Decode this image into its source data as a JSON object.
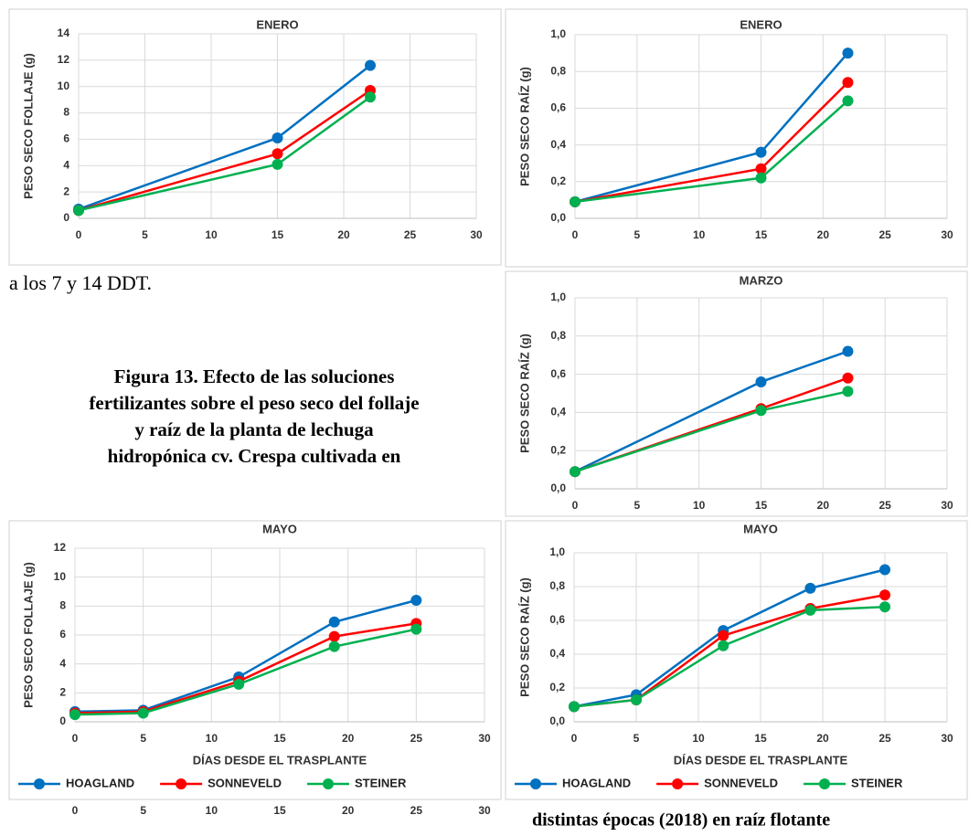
{
  "chart_data": [
    {
      "type": "line",
      "title": "ENERO",
      "y_label": "PESO SECO FOLLAJE (g)",
      "x": [
        0,
        15,
        22
      ],
      "xlim": [
        0,
        30
      ],
      "xticks": [
        0,
        5,
        10,
        15,
        20,
        25,
        30
      ],
      "ylim": [
        0,
        14
      ],
      "yticks": [
        0,
        2,
        4,
        6,
        8,
        10,
        12,
        14
      ],
      "grid": true,
      "series": [
        {
          "color": "#0070C0",
          "values": [
            0.7,
            6.1,
            11.6
          ]
        },
        {
          "color": "#FF0000",
          "values": [
            0.6,
            4.9,
            9.7
          ]
        },
        {
          "color": "#00B050",
          "values": [
            0.6,
            4.1,
            9.2
          ]
        }
      ]
    },
    {
      "type": "line",
      "title": "ENERO",
      "y_label": "PESO SECO RAÍZ (g)",
      "x": [
        0,
        15,
        22
      ],
      "xlim": [
        0,
        30
      ],
      "xticks": [
        0,
        5,
        10,
        15,
        20,
        25,
        30
      ],
      "ylim": [
        0,
        1
      ],
      "yticks": [
        {
          "value": 0,
          "label": "0,0"
        },
        {
          "value": 0.2,
          "label": "0,2"
        },
        {
          "value": 0.4,
          "label": "0,4"
        },
        {
          "value": 0.6,
          "label": "0,6"
        },
        {
          "value": 0.8,
          "label": "0,8"
        },
        {
          "value": 1,
          "label": "1,0"
        }
      ],
      "grid": true,
      "series": [
        {
          "color": "#0070C0",
          "values": [
            0.09,
            0.36,
            0.9
          ]
        },
        {
          "color": "#FF0000",
          "values": [
            0.09,
            0.27,
            0.74
          ]
        },
        {
          "color": "#00B050",
          "values": [
            0.09,
            0.22,
            0.64
          ]
        }
      ]
    },
    {
      "type": "line",
      "title": "MARZO",
      "y_label": "PESO SECO RAÍZ (g)",
      "x": [
        0,
        15,
        22
      ],
      "xlim": [
        0,
        30
      ],
      "xticks": [
        0,
        5,
        10,
        15,
        20,
        25,
        30
      ],
      "ylim": [
        0,
        1
      ],
      "yticks": [
        {
          "value": 0,
          "label": "0,0"
        },
        {
          "value": 0.2,
          "label": "0,2"
        },
        {
          "value": 0.4,
          "label": "0,4"
        },
        {
          "value": 0.6,
          "label": "0,6"
        },
        {
          "value": 0.8,
          "label": "0,8"
        },
        {
          "value": 1,
          "label": "1,0"
        }
      ],
      "grid": true,
      "series": [
        {
          "color": "#0070C0",
          "values": [
            0.09,
            0.56,
            0.72
          ]
        },
        {
          "color": "#FF0000",
          "values": [
            0.09,
            0.42,
            0.58
          ]
        },
        {
          "color": "#00B050",
          "values": [
            0.09,
            0.41,
            0.51
          ]
        }
      ]
    },
    {
      "type": "line",
      "title": "MAYO",
      "y_label": "PESO SECO FOLLAJE  (g)",
      "x_label": "DÍAS DESDE EL TRASPLANTE",
      "x": [
        0,
        5,
        12,
        19,
        25
      ],
      "xlim": [
        0,
        30
      ],
      "xticks": [
        0,
        5,
        10,
        15,
        20,
        25,
        30
      ],
      "ylim": [
        0,
        12
      ],
      "yticks": [
        0,
        2,
        4,
        6,
        8,
        10,
        12
      ],
      "grid": true,
      "legend": "bottom",
      "series": [
        {
          "name": "HOAGLAND",
          "color": "#0070C0",
          "values": [
            0.7,
            0.8,
            3.1,
            6.9,
            8.4
          ]
        },
        {
          "name": "SONNEVELD",
          "color": "#FF0000",
          "values": [
            0.6,
            0.7,
            2.8,
            5.9,
            6.8
          ]
        },
        {
          "name": "STEINER",
          "color": "#00B050",
          "values": [
            0.5,
            0.6,
            2.6,
            5.2,
            6.4
          ]
        }
      ]
    },
    {
      "type": "line",
      "title": "MAYO",
      "y_label": "PESO SECO RAÍZ (g)",
      "x_label": "DÍAS DESDE EL TRASPLANTE",
      "x": [
        0,
        5,
        12,
        19,
        25
      ],
      "xlim": [
        0,
        30
      ],
      "xticks": [
        0,
        5,
        10,
        15,
        20,
        25,
        30
      ],
      "ylim": [
        0,
        1
      ],
      "yticks": [
        {
          "value": 0,
          "label": "0,0"
        },
        {
          "value": 0.2,
          "label": "0,2"
        },
        {
          "value": 0.4,
          "label": "0,4"
        },
        {
          "value": 0.6,
          "label": "0,6"
        },
        {
          "value": 0.8,
          "label": "0,8"
        },
        {
          "value": 1,
          "label": "1,0"
        }
      ],
      "grid": true,
      "legend": "bottom",
      "series": [
        {
          "name": "HOAGLAND",
          "color": "#0070C0",
          "values": [
            0.09,
            0.16,
            0.54,
            0.79,
            0.9
          ]
        },
        {
          "name": "SONNEVELD",
          "color": "#FF0000",
          "values": [
            0.09,
            0.13,
            0.51,
            0.67,
            0.75
          ]
        },
        {
          "name": "STEINER",
          "color": "#00B050",
          "values": [
            0.09,
            0.13,
            0.45,
            0.66,
            0.68
          ]
        }
      ]
    }
  ],
  "text_before": "a los 7 y 14 DDT.",
  "caption": {
    "lines": [
      "Figura 13. Efecto de las soluciones",
      "fertilizantes sobre el peso seco del follaje",
      "y raíz de la planta de lechuga",
      "hidropónica cv. Crespa cultivada en"
    ]
  },
  "caption_continued": "distintas épocas (2018) en raíz flotante",
  "overlapped_axis": {
    "ticks": [
      0,
      5,
      10,
      15,
      20,
      25,
      30
    ]
  }
}
